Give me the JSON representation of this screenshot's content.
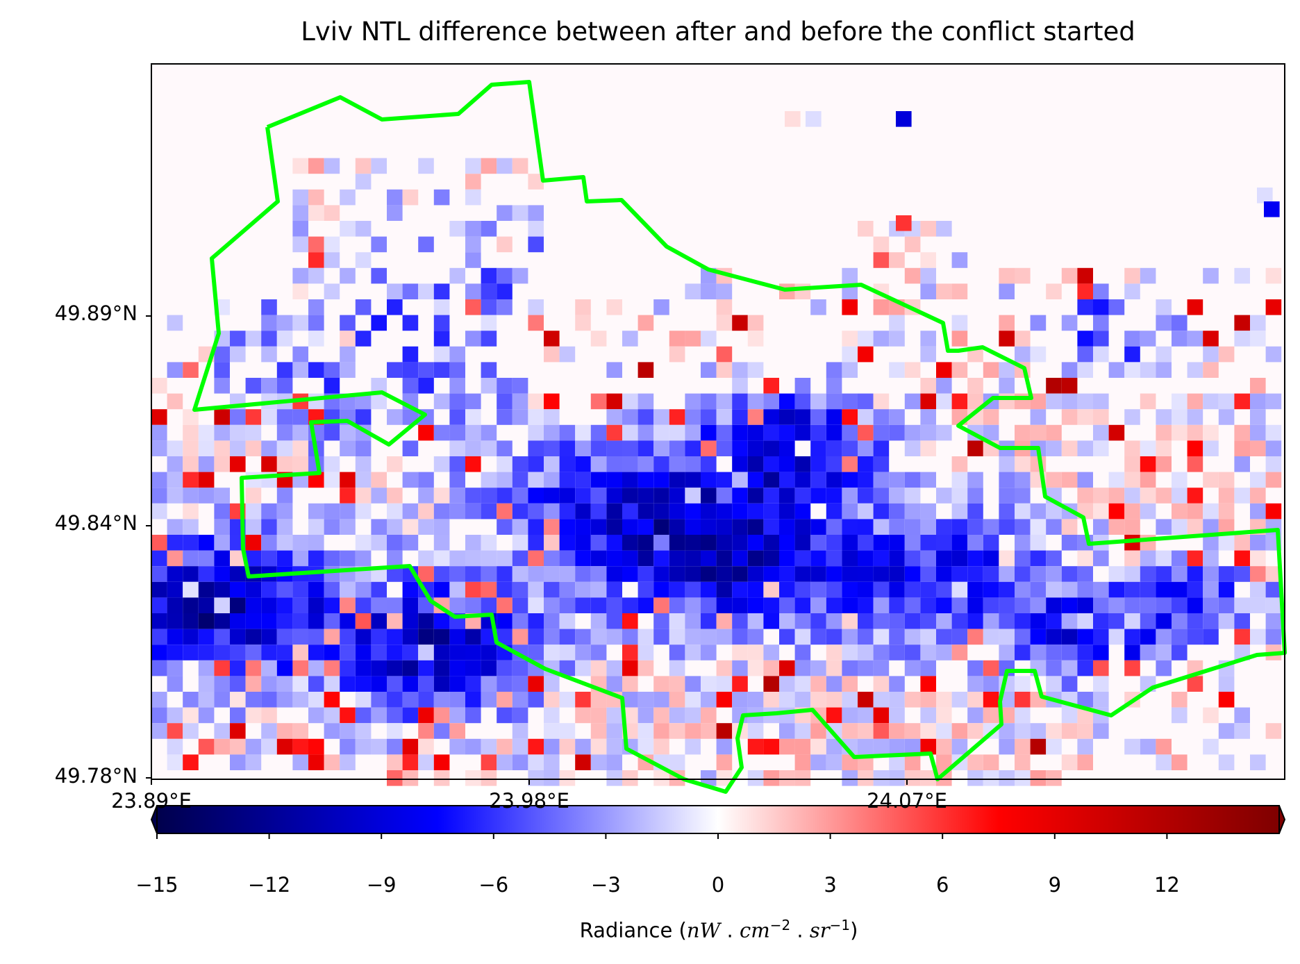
{
  "title": "Lviv NTL difference between after and before the conflict started",
  "map": {
    "y_ticks": [
      "49.89°N",
      "49.84°N",
      "49.78°N"
    ],
    "x_ticks": [
      "23.89°E",
      "23.98°E",
      "24.07°E"
    ],
    "boundary_color": "#00ff00"
  },
  "colorbar": {
    "colormap": "seismic",
    "range": [
      -15,
      15
    ],
    "extend": "both",
    "ticks": [
      "−15",
      "−12",
      "−9",
      "−6",
      "−3",
      "0",
      "3",
      "6",
      "9",
      "12"
    ],
    "label_prefix": "Radiance (",
    "label_suffix": ")"
  }
}
